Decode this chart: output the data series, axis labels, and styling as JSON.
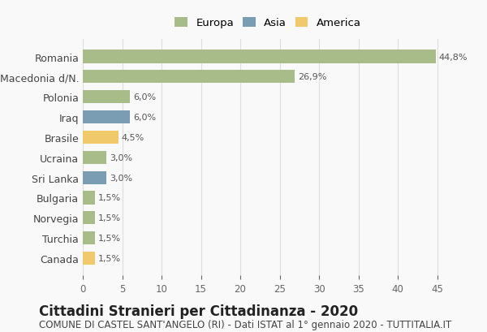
{
  "categories": [
    "Romania",
    "Macedonia d/N.",
    "Polonia",
    "Iraq",
    "Brasile",
    "Ucraina",
    "Sri Lanka",
    "Bulgaria",
    "Norvegia",
    "Turchia",
    "Canada"
  ],
  "values": [
    44.8,
    26.9,
    6.0,
    6.0,
    4.5,
    3.0,
    3.0,
    1.5,
    1.5,
    1.5,
    1.5
  ],
  "labels": [
    "44,8%",
    "26,9%",
    "6,0%",
    "6,0%",
    "4,5%",
    "3,0%",
    "3,0%",
    "1,5%",
    "1,5%",
    "1,5%",
    "1,5%"
  ],
  "continents": [
    "Europa",
    "Europa",
    "Europa",
    "Asia",
    "America",
    "Europa",
    "Asia",
    "Europa",
    "Europa",
    "Europa",
    "America"
  ],
  "colors": {
    "Europa": "#a8bc8a",
    "Asia": "#7b9db4",
    "America": "#f0c96a"
  },
  "legend_order": [
    "Europa",
    "Asia",
    "America"
  ],
  "title": "Cittadini Stranieri per Cittadinanza - 2020",
  "subtitle": "COMUNE DI CASTEL SANT'ANGELO (RI) - Dati ISTAT al 1° gennaio 2020 - TUTTITALIA.IT",
  "xlim": [
    0,
    47
  ],
  "xticks": [
    0,
    5,
    10,
    15,
    20,
    25,
    30,
    35,
    40,
    45
  ],
  "background_color": "#f9f9f9",
  "grid_color": "#dddddd",
  "bar_height": 0.65,
  "title_fontsize": 12,
  "subtitle_fontsize": 8.5,
  "label_fontsize": 8,
  "tick_fontsize": 8.5,
  "ylabel_fontsize": 9,
  "legend_fontsize": 9.5
}
